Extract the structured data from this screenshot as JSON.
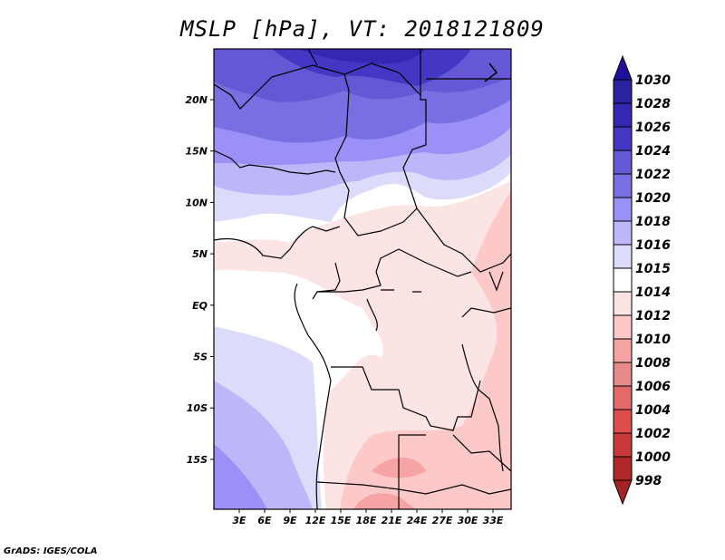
{
  "title": "MSLP [hPa], VT: 2018121809",
  "footer": "GrADS: IGES/COLA",
  "lon_ticks": [
    "3E",
    "6E",
    "9E",
    "12E",
    "15E",
    "18E",
    "21E",
    "24E",
    "27E",
    "30E",
    "33E"
  ],
  "lat_ticks": [
    "20N",
    "15N",
    "10N",
    "5N",
    "EQ",
    "5S",
    "10S",
    "15S"
  ],
  "colorbar": {
    "labels": [
      "1030",
      "1028",
      "1026",
      "1024",
      "1022",
      "1020",
      "1018",
      "1016",
      "1015",
      "1014",
      "1012",
      "1010",
      "1008",
      "1006",
      "1004",
      "1002",
      "1000",
      "998"
    ],
    "colors": [
      "#2b22a0",
      "#3428b2",
      "#4437c4",
      "#6458d4",
      "#786fe2",
      "#9b8ff8",
      "#bdb6f8",
      "#dcdcfa",
      "#ffffff",
      "#fde4e4",
      "#fcc8c8",
      "#f5a3a3",
      "#e68a8a",
      "#e26a6a",
      "#de4c4c",
      "#c93b3b",
      "#b02828"
    ],
    "over_color": "#20109a",
    "under_color": "#a52222"
  }
}
